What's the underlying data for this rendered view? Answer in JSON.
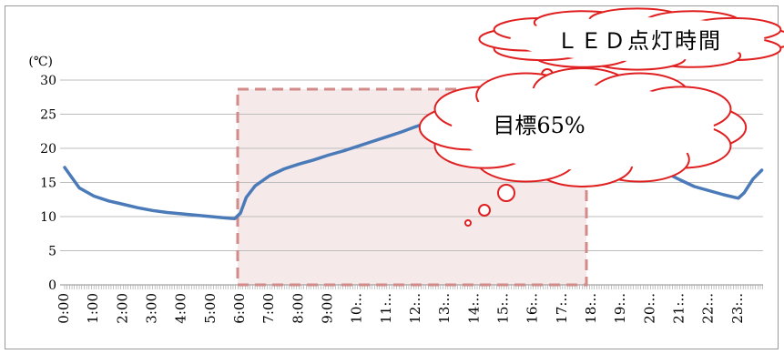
{
  "chart_data": {
    "type": "line",
    "unit_label": "(℃)",
    "ylim": [
      0,
      30
    ],
    "yticks": [
      "0",
      "5",
      "10",
      "15",
      "20",
      "25",
      "30"
    ],
    "categories": [
      "0:00",
      "1:00",
      "2:00",
      "3:00",
      "4:00",
      "5:00",
      "6:00",
      "7:00",
      "8:00",
      "9:00",
      "10:..",
      "11:..",
      "12:..",
      "13:..",
      "14:..",
      "15:..",
      "16:..",
      "17:..",
      "18:..",
      "19:..",
      "20:..",
      "21:..",
      "22:..",
      "23:.."
    ],
    "series": [
      {
        "color": "#4a7ab8",
        "x": [
          0.0,
          0.2,
          0.5,
          1.0,
          1.5,
          2.0,
          2.5,
          3.0,
          3.5,
          4.0,
          4.5,
          5.0,
          5.5,
          5.8,
          6.0,
          6.2,
          6.5,
          7.0,
          7.5,
          8.0,
          8.5,
          9.0,
          9.5,
          10.0,
          10.5,
          11.0,
          11.5,
          12.0,
          12.5,
          13.0,
          13.5,
          14.0,
          14.5,
          15.0,
          15.5,
          16.0,
          16.5,
          17.0,
          17.5,
          18.0,
          18.5,
          19.0,
          19.5,
          20.0,
          20.5,
          21.0,
          21.5,
          22.0,
          22.5,
          23.0,
          23.2,
          23.5,
          23.8
        ],
        "y": [
          17.2,
          16.0,
          14.2,
          13.0,
          12.3,
          11.8,
          11.3,
          10.9,
          10.6,
          10.4,
          10.2,
          10.0,
          9.8,
          9.7,
          10.5,
          12.8,
          14.5,
          16.0,
          17.0,
          17.7,
          18.3,
          19.0,
          19.6,
          20.3,
          21.0,
          21.7,
          22.4,
          23.2,
          23.9,
          24.7,
          25.0,
          25.5,
          25.8,
          26.0,
          25.8,
          25.3,
          24.5,
          23.6,
          22.5,
          21.4,
          20.4,
          19.5,
          18.5,
          17.5,
          16.5,
          15.4,
          14.4,
          13.8,
          13.2,
          12.7,
          13.5,
          15.5,
          16.8
        ]
      }
    ],
    "annotations": {
      "led_label": "ＬＥＤ点灯時間",
      "target_label": "目標65%",
      "led_range": [
        6,
        18
      ]
    }
  }
}
